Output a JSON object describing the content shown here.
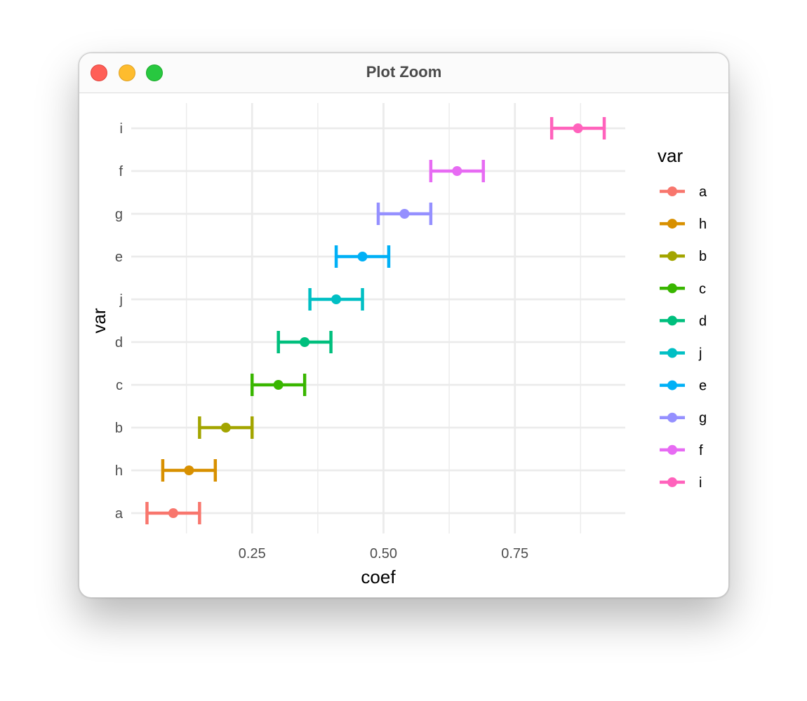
{
  "window": {
    "title": "Plot Zoom"
  },
  "chart_data": {
    "type": "scatter",
    "xlabel": "coef",
    "ylabel": "var",
    "xlim": [
      0.02,
      0.96
    ],
    "x_ticks": [
      0.25,
      0.5,
      0.75
    ],
    "x_tick_labels": [
      "0.25",
      "0.50",
      "0.75"
    ],
    "x_minor_ticks": [
      0.125,
      0.375,
      0.625,
      0.875
    ],
    "grid": true,
    "categories": [
      "a",
      "h",
      "b",
      "c",
      "d",
      "j",
      "e",
      "g",
      "f",
      "i"
    ],
    "series": [
      {
        "name": "a",
        "color": "#F8766D",
        "coef": 0.1,
        "lower": 0.05,
        "upper": 0.15
      },
      {
        "name": "h",
        "color": "#D89000",
        "coef": 0.13,
        "lower": 0.08,
        "upper": 0.18
      },
      {
        "name": "b",
        "color": "#A3A500",
        "coef": 0.2,
        "lower": 0.15,
        "upper": 0.25
      },
      {
        "name": "c",
        "color": "#39B600",
        "coef": 0.3,
        "lower": 0.25,
        "upper": 0.35
      },
      {
        "name": "d",
        "color": "#00BF7D",
        "coef": 0.35,
        "lower": 0.3,
        "upper": 0.4
      },
      {
        "name": "j",
        "color": "#00BFC4",
        "coef": 0.41,
        "lower": 0.36,
        "upper": 0.46
      },
      {
        "name": "e",
        "color": "#00B0F6",
        "coef": 0.46,
        "lower": 0.41,
        "upper": 0.51
      },
      {
        "name": "g",
        "color": "#9590FF",
        "coef": 0.54,
        "lower": 0.49,
        "upper": 0.59
      },
      {
        "name": "f",
        "color": "#E76BF3",
        "coef": 0.64,
        "lower": 0.59,
        "upper": 0.69
      },
      {
        "name": "i",
        "color": "#FF62BC",
        "coef": 0.87,
        "lower": 0.82,
        "upper": 0.92
      }
    ],
    "legend": {
      "title": "var",
      "position": "right"
    }
  }
}
